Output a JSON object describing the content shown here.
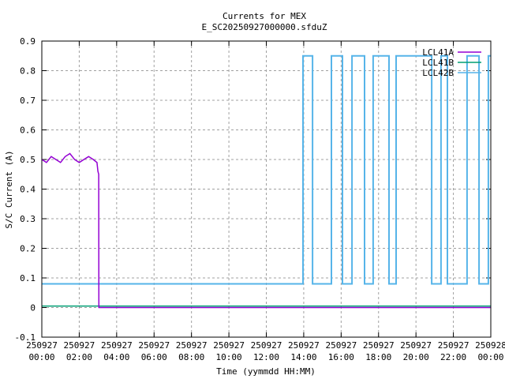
{
  "chart_data": {
    "type": "line",
    "title": "Currents for MEX",
    "subtitle": "E_SC20250927000000.sfduZ",
    "xlabel": "Time (yymmdd HH:MM)",
    "ylabel": "S/C Current (A)",
    "xlim_hours": [
      0,
      24
    ],
    "ylim": [
      -0.1,
      0.9
    ],
    "yticks": [
      "-0.1",
      "0",
      "0.1",
      "0.2",
      "0.3",
      "0.4",
      "0.5",
      "0.6",
      "0.7",
      "0.8",
      "0.9"
    ],
    "xticks": [
      [
        "250927",
        "00:00"
      ],
      [
        "250927",
        "02:00"
      ],
      [
        "250927",
        "04:00"
      ],
      [
        "250927",
        "06:00"
      ],
      [
        "250927",
        "08:00"
      ],
      [
        "250927",
        "10:00"
      ],
      [
        "250927",
        "12:00"
      ],
      [
        "250927",
        "14:00"
      ],
      [
        "250927",
        "16:00"
      ],
      [
        "250927",
        "18:00"
      ],
      [
        "250927",
        "20:00"
      ],
      [
        "250927",
        "22:00"
      ],
      [
        "250928",
        "00:00"
      ]
    ],
    "grid": true,
    "legend_position": "top-right",
    "series": [
      {
        "name": "LCL41A",
        "color": "#9400d3",
        "x_hours": [
          0,
          0.25,
          0.5,
          0.75,
          1,
          1.25,
          1.5,
          1.75,
          2,
          2.25,
          2.5,
          2.75,
          2.95,
          3.0,
          3.04,
          3.05,
          24
        ],
        "y": [
          0.5,
          0.49,
          0.51,
          0.5,
          0.49,
          0.51,
          0.52,
          0.5,
          0.49,
          0.5,
          0.51,
          0.5,
          0.49,
          0.46,
          0.45,
          0.0,
          0.0
        ]
      },
      {
        "name": "LCL41B",
        "color": "#009e73",
        "x_hours": [
          0,
          24
        ],
        "y": [
          0.005,
          0.005
        ]
      },
      {
        "name": "LCL42B",
        "color": "#56b4e9",
        "x_hours": [
          0,
          13.96,
          13.96,
          14.47,
          14.47,
          15.48,
          15.48,
          16.07,
          16.07,
          16.58,
          16.58,
          17.25,
          17.25,
          17.71,
          17.71,
          18.56,
          18.56,
          18.94,
          18.94,
          20.84,
          20.84,
          21.34,
          21.34,
          21.68,
          21.68,
          22.73,
          22.73,
          23.37,
          23.37,
          23.87,
          23.87,
          24
        ],
        "y": [
          0.08,
          0.08,
          0.85,
          0.85,
          0.08,
          0.08,
          0.85,
          0.85,
          0.08,
          0.08,
          0.85,
          0.85,
          0.08,
          0.08,
          0.85,
          0.85,
          0.08,
          0.08,
          0.85,
          0.85,
          0.08,
          0.08,
          0.85,
          0.85,
          0.08,
          0.08,
          0.85,
          0.85,
          0.08,
          0.08,
          0.85,
          0.85
        ]
      }
    ]
  }
}
